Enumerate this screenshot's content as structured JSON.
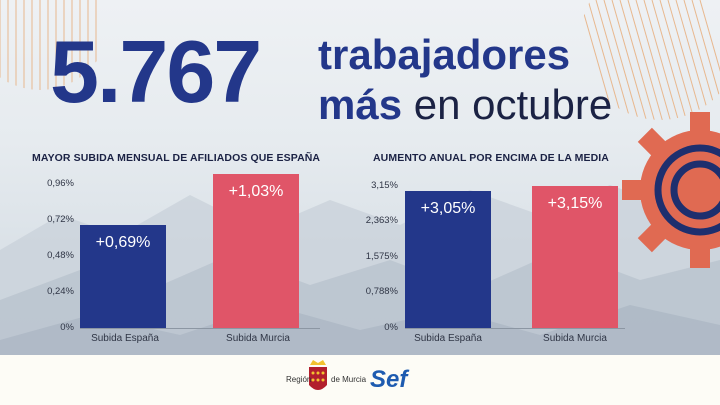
{
  "headline": {
    "number": "5.767",
    "line1": "trabajadores",
    "line2_bold": "más",
    "line2_plain": "en octubre"
  },
  "chart_data": [
    {
      "type": "bar",
      "title": "MAYOR SUBIDA MENSUAL DE AFILIADOS QUE ESPAÑA",
      "categories": [
        "Subida España",
        "Subida Murcia"
      ],
      "values": [
        0.69,
        1.03
      ],
      "value_labels": [
        "+0,69%",
        "+1,03%"
      ],
      "ticks": [
        "0%",
        "0,24%",
        "0,48%",
        "0,72%",
        "0,96%"
      ],
      "tick_values": [
        0,
        0.24,
        0.48,
        0.72,
        0.96
      ],
      "ylim": [
        0,
        0.96
      ],
      "colors": [
        "#23378a",
        "#e05568"
      ],
      "grid": false
    },
    {
      "type": "bar",
      "title": "AUMENTO ANUAL POR ENCIMA DE LA MEDIA",
      "categories": [
        "Subida España",
        "Subida Murcia"
      ],
      "values": [
        3.05,
        3.15
      ],
      "value_labels": [
        "+3,05%",
        "+3,15%"
      ],
      "ticks": [
        "0%",
        "0,788%",
        "1,575%",
        "2,363%",
        "3,15%"
      ],
      "tick_values": [
        0,
        0.788,
        1.575,
        2.363,
        3.15
      ],
      "ylim": [
        0,
        3.15
      ],
      "colors": [
        "#23378a",
        "#e05568"
      ],
      "grid": false
    }
  ],
  "footer": {
    "region_left": "Región",
    "region_right": "de Murcia",
    "sef": "Sef"
  },
  "colors": {
    "navy": "#23378a",
    "pink": "#e05568",
    "gear": "#e06a52"
  },
  "icons": [
    "gear-icon",
    "murcia-coat-of-arms"
  ]
}
